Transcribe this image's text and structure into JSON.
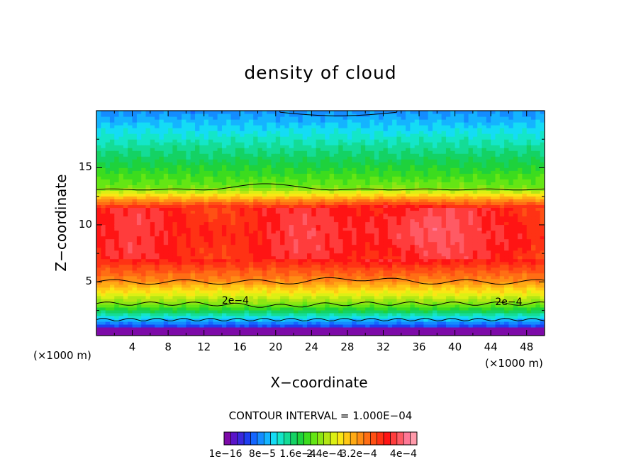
{
  "chart_data": {
    "type": "heatmap",
    "title": "density of cloud",
    "xlabel": "X−coordinate",
    "ylabel": "Z−coordinate",
    "x_unit": "(×1000 m)",
    "y_unit": "(×1000 m)",
    "xlim": [
      0,
      50
    ],
    "ylim": [
      0.3,
      20
    ],
    "x_ticks": [
      "4",
      "8",
      "12",
      "16",
      "20",
      "24",
      "28",
      "32",
      "36",
      "40",
      "44",
      "48"
    ],
    "y_ticks": [
      "5",
      "10",
      "15"
    ],
    "contour_interval": "CONTOUR INTERVAL = 1.000E−04",
    "contour_labels": [
      "2e−4",
      "2e−4"
    ],
    "colorbar_ticks": [
      "1e−16",
      "8e−5",
      "1.6e−4",
      "2.4e−4",
      "3.2e−4",
      "4e−4"
    ],
    "colorbar_range": [
      0,
      0.00042
    ],
    "colorbar_colors": [
      "#7d0aa8",
      "#5a14c8",
      "#3a28dc",
      "#1e3ef0",
      "#1466ff",
      "#148cff",
      "#14b4ff",
      "#14dcf5",
      "#14e6c8",
      "#14dc96",
      "#14d264",
      "#1ed23c",
      "#3cdc1e",
      "#64e614",
      "#8ce614",
      "#b4e614",
      "#dcf014",
      "#fae614",
      "#ffc814",
      "#ffaa14",
      "#ff8c14",
      "#ff6e14",
      "#ff5014",
      "#ff3214",
      "#ff1414",
      "#ff3c3c",
      "#ff5a64",
      "#ff7896",
      "#ff9aaa"
    ]
  }
}
